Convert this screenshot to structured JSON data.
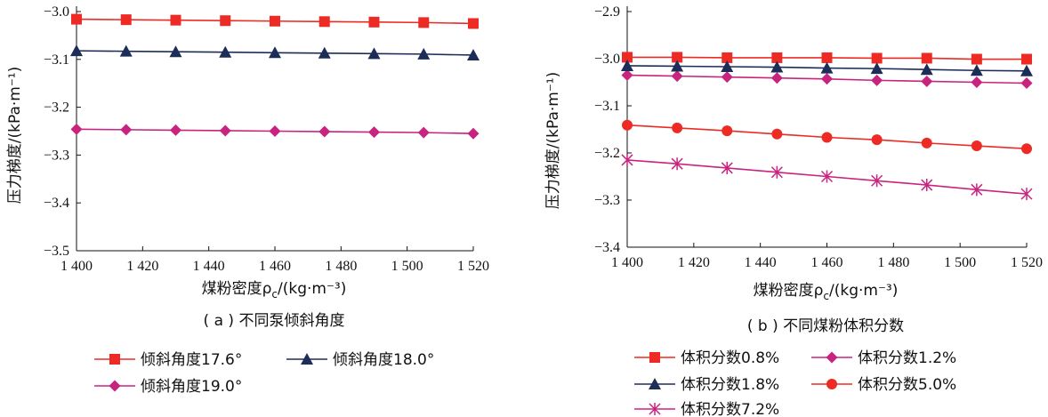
{
  "charts": [
    {
      "caption": "( a ) 不同泵倾斜角度",
      "ylabel": "压力梯度/(kPa·m⁻¹)",
      "xlabel": "煤粉密度ρ",
      "xlabel_sub": "c",
      "xlabel_unit": "/(kg·m⁻³)"
    },
    {
      "caption": "( b ) 不同煤粉体积分数",
      "ylabel": "压力梯度/(kPa·m⁻¹)",
      "xlabel": "煤粉密度ρ",
      "xlabel_sub": "c",
      "xlabel_unit": "/(kg·m⁻³)"
    }
  ],
  "chart_data": [
    {
      "type": "line",
      "x": [
        1400,
        1415,
        1430,
        1445,
        1460,
        1475,
        1490,
        1505,
        1520
      ],
      "xticks": [
        1400,
        1420,
        1440,
        1460,
        1480,
        1500,
        1520
      ],
      "xtick_labels": [
        "1 400",
        "1 420",
        "1 440",
        "1 460",
        "1 480",
        "1 500",
        "1 520"
      ],
      "xlim": [
        1400,
        1520
      ],
      "ylim": [
        -3.5,
        -3.0
      ],
      "yticks": [
        -3.0,
        -3.1,
        -3.2,
        -3.3,
        -3.4,
        -3.5
      ],
      "ytick_labels": [
        "−3.0",
        "−3.1",
        "−3.2",
        "−3.3",
        "−3.4",
        "−3.5"
      ],
      "series": [
        {
          "name": "倾斜角度17.6°",
          "color": "#ee2a24",
          "marker": "square",
          "values": [
            -3.016,
            -3.017,
            -3.018,
            -3.019,
            -3.02,
            -3.021,
            -3.022,
            -3.023,
            -3.025
          ]
        },
        {
          "name": "倾斜角度18.0°",
          "color": "#1c2d57",
          "marker": "triangle",
          "values": [
            -3.082,
            -3.083,
            -3.084,
            -3.085,
            -3.086,
            -3.087,
            -3.088,
            -3.089,
            -3.091
          ]
        },
        {
          "name": "倾斜角度19.0°",
          "color": "#c8237f",
          "marker": "diamond",
          "values": [
            -3.246,
            -3.247,
            -3.248,
            -3.249,
            -3.25,
            -3.251,
            -3.252,
            -3.253,
            -3.255
          ]
        }
      ]
    },
    {
      "type": "line",
      "x": [
        1400,
        1415,
        1430,
        1445,
        1460,
        1475,
        1490,
        1505,
        1520
      ],
      "xticks": [
        1400,
        1420,
        1440,
        1460,
        1480,
        1500,
        1520
      ],
      "xtick_labels": [
        "1 400",
        "1 420",
        "1 440",
        "1 460",
        "1 480",
        "1 500",
        "1 520"
      ],
      "xlim": [
        1400,
        1520
      ],
      "ylim": [
        -3.4,
        -2.9
      ],
      "yticks": [
        -2.9,
        -3.0,
        -3.1,
        -3.2,
        -3.3,
        -3.4
      ],
      "ytick_labels": [
        "−2.9",
        "−3.0",
        "−3.1",
        "−3.2",
        "−3.3",
        "−3.4"
      ],
      "series": [
        {
          "name": "体积分数0.8%",
          "color": "#ee2a24",
          "marker": "square",
          "values": [
            -2.997,
            -2.997,
            -2.998,
            -2.998,
            -2.998,
            -2.999,
            -2.999,
            -3.001,
            -3.001
          ]
        },
        {
          "name": "体积分数1.2%",
          "color": "#c8237f",
          "marker": "diamond",
          "values": [
            -3.035,
            -3.037,
            -3.039,
            -3.041,
            -3.043,
            -3.046,
            -3.048,
            -3.05,
            -3.052
          ]
        },
        {
          "name": "体积分数1.8%",
          "color": "#1c2d57",
          "marker": "triangle",
          "values": [
            -3.015,
            -3.016,
            -3.017,
            -3.018,
            -3.02,
            -3.021,
            -3.023,
            -3.025,
            -3.026
          ]
        },
        {
          "name": "体积分数5.0%",
          "color": "#ee2a24",
          "marker": "circle",
          "values": [
            -3.141,
            -3.147,
            -3.153,
            -3.16,
            -3.167,
            -3.172,
            -3.179,
            -3.185,
            -3.191
          ]
        },
        {
          "name": "体积分数7.2%",
          "color": "#c8237f",
          "marker": "asterisk",
          "values": [
            -3.215,
            -3.223,
            -3.232,
            -3.241,
            -3.25,
            -3.259,
            -3.268,
            -3.278,
            -3.287
          ]
        }
      ]
    }
  ]
}
